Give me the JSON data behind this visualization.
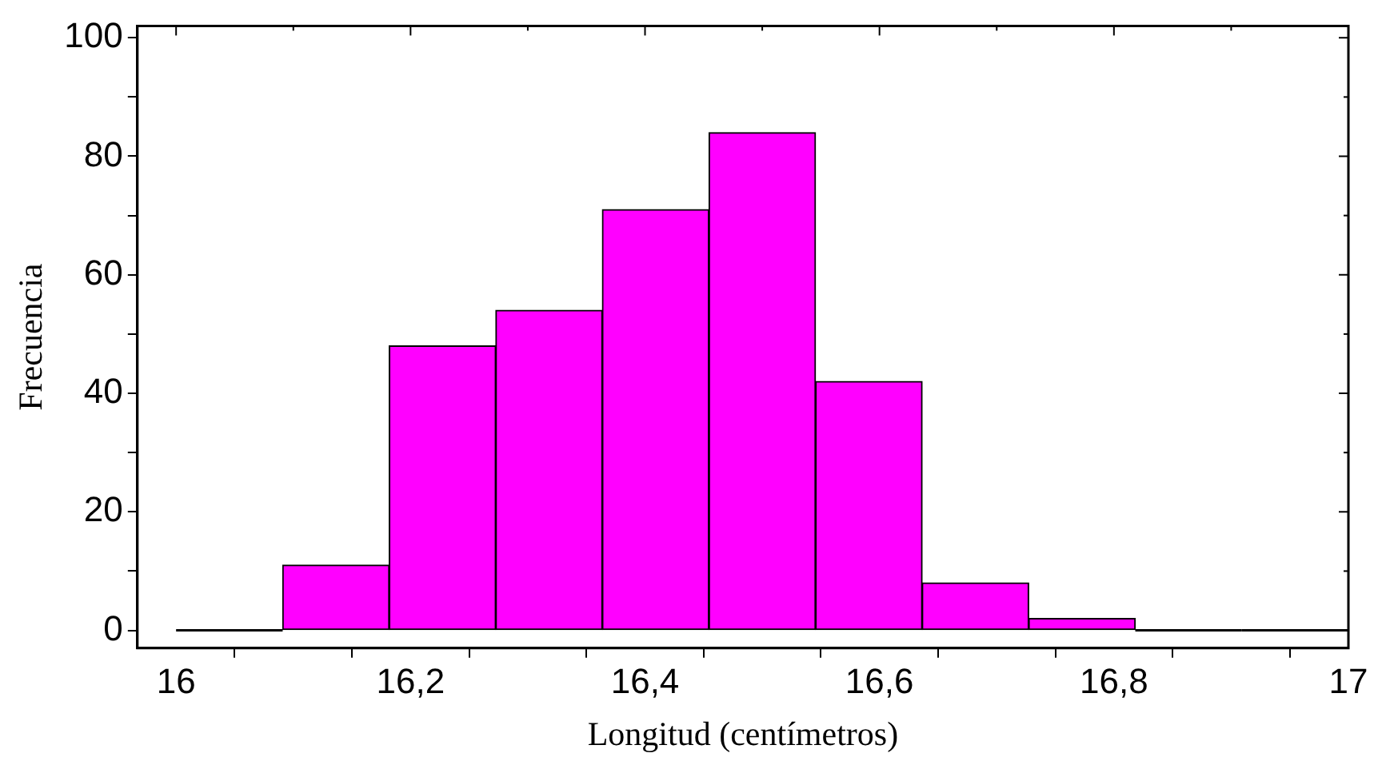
{
  "chart_data": {
    "type": "histogram",
    "xlabel": "Longitud (centímetros)",
    "ylabel": "Frecuencia",
    "color": "#ff00ff",
    "bins": [
      16,
      16.0909,
      16.1818,
      16.2727,
      16.3636,
      16.4545,
      16.5455,
      16.6364,
      16.7273,
      16.8182,
      16.9091,
      17
    ],
    "values": [
      0,
      11,
      48,
      54,
      71,
      84,
      42,
      8,
      2,
      0,
      0
    ],
    "xlim": [
      15.967,
      17.0
    ],
    "ylim": [
      -3,
      102
    ],
    "xticks": [
      16,
      {
        "value": 16.1,
        "label": null
      },
      "16,2",
      {
        "value": 16.3,
        "label": null
      },
      "16,4",
      {
        "value": 16.5,
        "label": null
      },
      "16,6",
      {
        "value": 16.7,
        "label": null
      },
      "16,8",
      {
        "value": 16.9,
        "label": null
      },
      17
    ],
    "yticks": [
      0,
      {
        "value": 10,
        "label": null
      },
      20,
      {
        "value": 30,
        "label": null
      },
      40,
      {
        "value": 50,
        "label": null
      },
      60,
      {
        "value": 70,
        "label": null
      },
      80,
      {
        "value": 90,
        "label": null
      },
      100
    ],
    "grid": false,
    "legend": false
  }
}
